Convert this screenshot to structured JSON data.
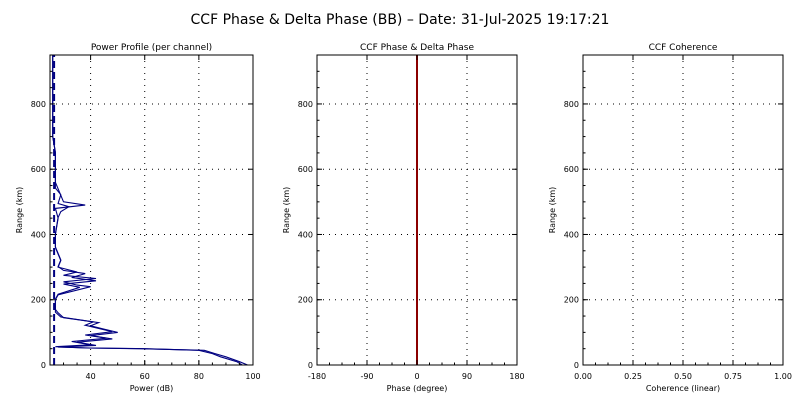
{
  "figure": {
    "title": "CCF Phase & Delta Phase (BB) – Date: 31-Jul-2025 19:17:21"
  },
  "chart_data": [
    {
      "type": "line",
      "title": "Power Profile (per channel)",
      "xlabel": "Power (dB)",
      "ylabel": "Range (km)",
      "xlim": [
        25,
        100
      ],
      "ylim": [
        0,
        950
      ],
      "xticks": [
        40,
        60,
        80,
        100
      ],
      "xtick_labels": [
        "40",
        "60",
        "80",
        "100"
      ],
      "yticks": [
        0,
        200,
        400,
        600,
        800
      ],
      "ytick_labels": [
        "0",
        "200",
        "400",
        "600",
        "800"
      ],
      "grid": true,
      "color": "#000080",
      "series": [
        {
          "points": [
            [
              96,
              0
            ],
            [
              94,
              10
            ],
            [
              88,
              25
            ],
            [
              85,
              35
            ],
            [
              80,
              45
            ],
            [
              60,
              50
            ],
            [
              40,
              52
            ],
            [
              28,
              55
            ],
            [
              42,
              60
            ],
            [
              35,
              70
            ],
            [
              48,
              80
            ],
            [
              40,
              90
            ],
            [
              50,
              100
            ],
            [
              45,
              110
            ],
            [
              40,
              120
            ],
            [
              43,
              130
            ],
            [
              30,
              145
            ],
            [
              28,
              160
            ],
            [
              27,
              170
            ],
            [
              27,
              200
            ],
            [
              28,
              215
            ],
            [
              40,
              240
            ],
            [
              35,
              245
            ],
            [
              30,
              255
            ],
            [
              42,
              265
            ],
            [
              30,
              275
            ],
            [
              35,
              285
            ],
            [
              28,
              300
            ],
            [
              29,
              320
            ],
            [
              28,
              340
            ],
            [
              27,
              360
            ],
            [
              27,
              400
            ],
            [
              28,
              450
            ],
            [
              27,
              480
            ],
            [
              38,
              490
            ],
            [
              30,
              500
            ],
            [
              29,
              520
            ],
            [
              28,
              540
            ],
            [
              27,
              560
            ],
            [
              27,
              600
            ],
            [
              27,
              650
            ],
            [
              26,
              700
            ],
            [
              26,
              800
            ],
            [
              26,
              950
            ]
          ]
        },
        {
          "points": [
            [
              98,
              0
            ],
            [
              95,
              10
            ],
            [
              90,
              25
            ],
            [
              86,
              35
            ],
            [
              82,
              45
            ],
            [
              58,
              50
            ],
            [
              38,
              52
            ],
            [
              27,
              56
            ],
            [
              40,
              62
            ],
            [
              33,
              72
            ],
            [
              46,
              82
            ],
            [
              38,
              92
            ],
            [
              48,
              102
            ],
            [
              43,
              112
            ],
            [
              38,
              122
            ],
            [
              41,
              132
            ],
            [
              29,
              147
            ],
            [
              27,
              162
            ],
            [
              27,
              172
            ],
            [
              27,
              202
            ],
            [
              28,
              217
            ],
            [
              36,
              238
            ],
            [
              30,
              248
            ],
            [
              42,
              258
            ],
            [
              33,
              268
            ],
            [
              38,
              280
            ],
            [
              30,
              290
            ],
            [
              28,
              302
            ],
            [
              29,
              322
            ],
            [
              28,
              342
            ],
            [
              27,
              362
            ],
            [
              27,
              402
            ],
            [
              28,
              452
            ],
            [
              29,
              470
            ],
            [
              32,
              485
            ],
            [
              28,
              495
            ],
            [
              29,
              522
            ],
            [
              27,
              542
            ],
            [
              27,
              562
            ],
            [
              27,
              602
            ],
            [
              27,
              652
            ],
            [
              26,
              702
            ],
            [
              26,
              802
            ],
            [
              26,
              950
            ]
          ]
        },
        {
          "dashed": true,
          "points": [
            [
              26.5,
              0
            ],
            [
              26.5,
              950
            ]
          ]
        }
      ]
    },
    {
      "type": "line",
      "title": "CCF Phase & Delta Phase",
      "xlabel": "Phase (degree)",
      "ylabel": "Range (km)",
      "xlim": [
        -180,
        180
      ],
      "ylim": [
        0,
        950
      ],
      "xticks": [
        -180,
        -90,
        0,
        90,
        180
      ],
      "xtick_labels": [
        "-180",
        "-90",
        "0",
        "90",
        "180"
      ],
      "yticks": [
        0,
        200,
        400,
        600,
        800
      ],
      "ytick_labels": [
        "0",
        "200",
        "400",
        "600",
        "800"
      ],
      "grid": true,
      "color": "#8b0000",
      "series": [
        {
          "points": [
            [
              0,
              0
            ],
            [
              0,
              950
            ]
          ]
        }
      ]
    },
    {
      "type": "line",
      "title": "CCF Coherence",
      "xlabel": "Coherence (linear)",
      "ylabel": "Range (km)",
      "xlim": [
        0,
        1
      ],
      "ylim": [
        0,
        950
      ],
      "xticks": [
        0,
        0.25,
        0.5,
        0.75,
        1
      ],
      "xtick_labels": [
        "0.00",
        "0.25",
        "0.50",
        "0.75",
        "1.00"
      ],
      "yticks": [
        0,
        200,
        400,
        600,
        800
      ],
      "ytick_labels": [
        "0",
        "200",
        "400",
        "600",
        "800"
      ],
      "grid": true,
      "color": "#000080",
      "series": []
    }
  ]
}
